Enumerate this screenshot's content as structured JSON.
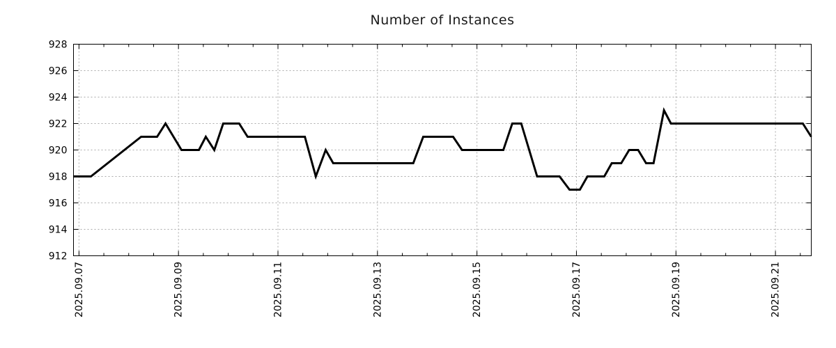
{
  "title": "Number of Instances",
  "chart_data": {
    "type": "line",
    "title": "Number of Instances",
    "xlabel": "",
    "ylabel": "",
    "legend": "none",
    "grid": true,
    "line_color": "#000000",
    "grid_color": "#a9a9a9",
    "axis_color": "#000000",
    "x_axis": {
      "kind": "date",
      "tick_labels": [
        "2025.09.07",
        "2025.09.09",
        "2025.09.11",
        "2025.09.13",
        "2025.09.15",
        "2025.09.17",
        "2025.09.19",
        "2025.09.21"
      ],
      "major_tick_positions_days": [
        0,
        2,
        4,
        6,
        8,
        10,
        12,
        14
      ],
      "minor_tick_interval_days": 0.5,
      "domain_days": [
        -0.11,
        14.72
      ],
      "label_rotation_deg": -90
    },
    "y_axis": {
      "ylim": [
        912,
        928
      ],
      "tick_labels": [
        "912",
        "914",
        "916",
        "918",
        "920",
        "922",
        "924",
        "926",
        "928"
      ],
      "tick_values": [
        912,
        914,
        916,
        918,
        920,
        922,
        924,
        926,
        928
      ]
    },
    "series": [
      {
        "name": "Number of Instances",
        "points_days_value": [
          [
            -0.11,
            918
          ],
          [
            0.24,
            918
          ],
          [
            1.25,
            921
          ],
          [
            1.57,
            921
          ],
          [
            1.74,
            922
          ],
          [
            2.06,
            920
          ],
          [
            2.41,
            920
          ],
          [
            2.55,
            921
          ],
          [
            2.72,
            920
          ],
          [
            2.9,
            922
          ],
          [
            3.22,
            922
          ],
          [
            3.39,
            921
          ],
          [
            4.54,
            921
          ],
          [
            4.76,
            918
          ],
          [
            4.96,
            920
          ],
          [
            5.11,
            919
          ],
          [
            6.72,
            919
          ],
          [
            6.92,
            921
          ],
          [
            7.52,
            921
          ],
          [
            7.7,
            920
          ],
          [
            8.53,
            920
          ],
          [
            8.71,
            922
          ],
          [
            8.89,
            922
          ],
          [
            9.21,
            918
          ],
          [
            9.66,
            918
          ],
          [
            9.86,
            917
          ],
          [
            10.07,
            917
          ],
          [
            10.22,
            918
          ],
          [
            10.56,
            918
          ],
          [
            10.71,
            919
          ],
          [
            10.9,
            919
          ],
          [
            11.06,
            920
          ],
          [
            11.24,
            920
          ],
          [
            11.4,
            919
          ],
          [
            11.55,
            919
          ],
          [
            11.76,
            923
          ],
          [
            11.9,
            922
          ],
          [
            14.55,
            922
          ],
          [
            14.72,
            921
          ]
        ]
      }
    ]
  }
}
